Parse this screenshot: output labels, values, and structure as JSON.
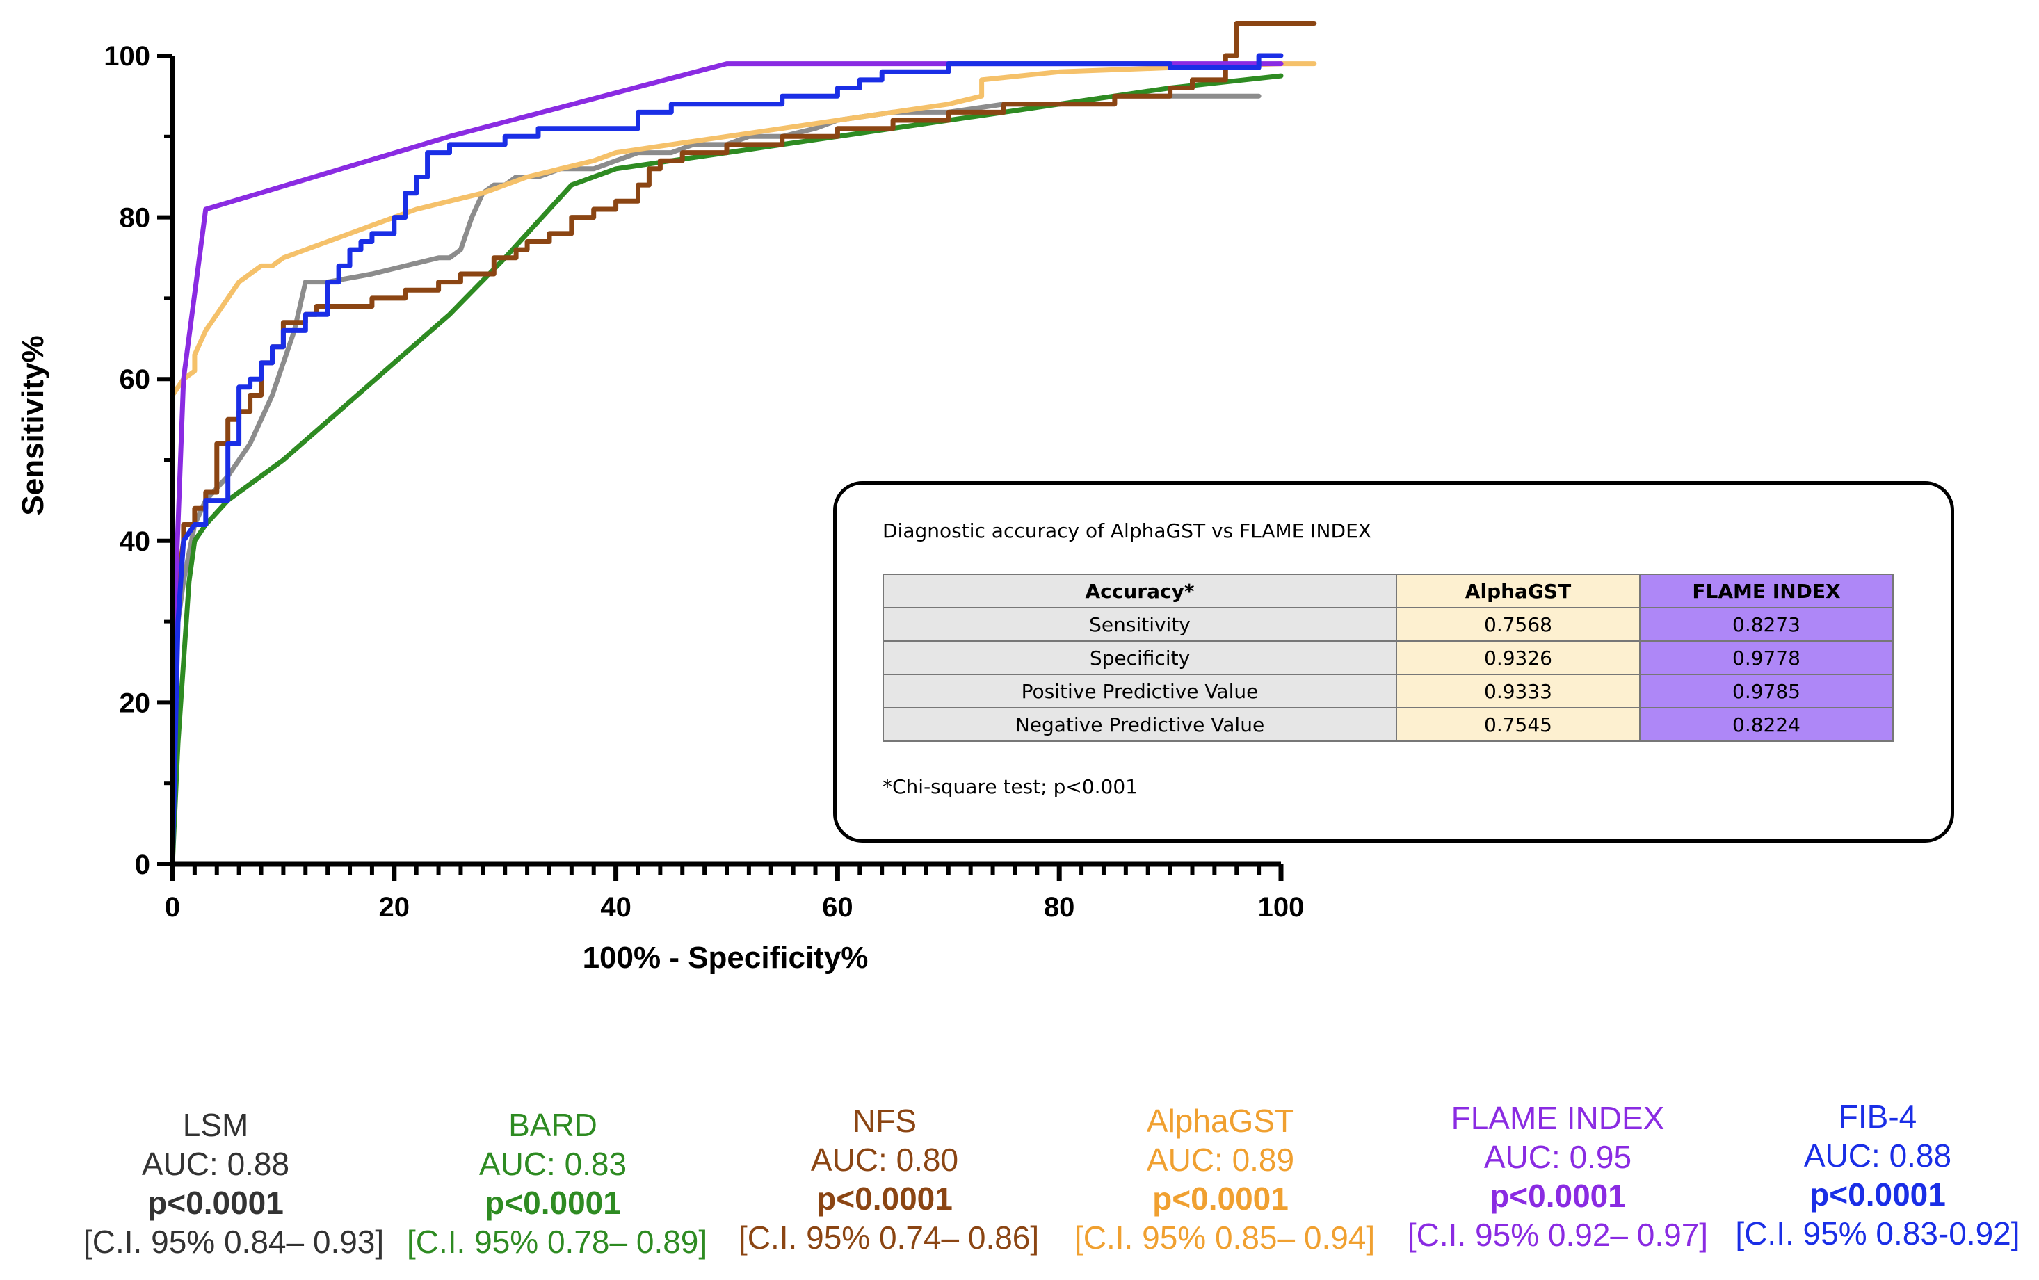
{
  "chart_data": {
    "type": "line",
    "title": "",
    "xlabel": "100% - Specificity%",
    "ylabel": "Sensitivity%",
    "xlim": [
      0,
      100
    ],
    "ylim": [
      0,
      100
    ],
    "x_ticks": [
      "0",
      "20",
      "40",
      "60",
      "80",
      "100"
    ],
    "y_ticks": [
      "0",
      "20",
      "40",
      "60",
      "80",
      "100"
    ],
    "grid": false,
    "series": [
      {
        "name": "LSM",
        "color": "#8c8c8c",
        "x": [
          0,
          0,
          0.5,
          1,
          2,
          3,
          5,
          7,
          9,
          10,
          11,
          12,
          14,
          18,
          21,
          24,
          25,
          26,
          27,
          28,
          29,
          30,
          31,
          33,
          35,
          38,
          40,
          42,
          45,
          47,
          50,
          52,
          55,
          58,
          60,
          65,
          70,
          75,
          80,
          85,
          90,
          95,
          98
        ],
        "y": [
          0,
          25,
          30,
          35,
          42,
          45,
          48,
          52,
          58,
          62,
          66,
          72,
          72,
          73,
          74,
          75,
          75,
          76,
          80,
          83,
          84,
          84,
          85,
          85,
          86,
          86,
          87,
          88,
          88,
          89,
          89,
          90,
          90,
          91,
          92,
          93,
          93,
          94,
          94,
          95,
          95,
          95,
          95
        ]
      },
      {
        "name": "BARD",
        "color": "#2e8b22",
        "x": [
          0,
          0.5,
          1,
          1.5,
          2,
          3,
          5,
          10,
          15,
          20,
          25,
          30,
          36,
          40,
          45,
          50,
          55,
          60,
          70,
          80,
          90,
          100
        ],
        "y": [
          0,
          15,
          25,
          35,
          40,
          42,
          45,
          50,
          56,
          62,
          68,
          75,
          84,
          86,
          87,
          88,
          89,
          90,
          92,
          94,
          96,
          97.5
        ]
      },
      {
        "name": "NFS",
        "color": "#8b4513",
        "x": [
          0,
          0.5,
          1,
          1,
          2,
          2,
          3,
          3,
          4,
          4,
          5,
          5,
          6,
          6,
          7,
          7,
          8,
          8,
          9,
          9,
          10,
          10,
          12,
          12,
          13,
          13,
          15,
          15,
          18,
          18,
          21,
          21,
          24,
          24,
          26,
          26,
          29,
          29,
          31,
          31,
          32,
          32,
          34,
          34,
          36,
          36,
          38,
          38,
          40,
          40,
          42,
          42,
          43,
          43,
          44,
          44,
          46,
          46,
          50,
          50,
          55,
          55,
          60,
          60,
          65,
          65,
          70,
          70,
          75,
          75,
          80,
          80,
          85,
          85,
          90,
          90,
          92,
          92,
          95,
          95,
          96,
          96,
          103
        ],
        "y": [
          0,
          35,
          40,
          42,
          42,
          44,
          44,
          46,
          46,
          52,
          52,
          55,
          55,
          56,
          56,
          58,
          58,
          62,
          62,
          64,
          64,
          67,
          67,
          68,
          68,
          69,
          69,
          69,
          69,
          70,
          70,
          71,
          71,
          72,
          72,
          73,
          73,
          75,
          75,
          76,
          76,
          77,
          77,
          78,
          78,
          80,
          80,
          81,
          81,
          82,
          82,
          84,
          84,
          86,
          86,
          87,
          87,
          88,
          88,
          89,
          89,
          90,
          90,
          91,
          91,
          92,
          92,
          93,
          93,
          94,
          94,
          94,
          94,
          95,
          95,
          96,
          96,
          97,
          97,
          100,
          100,
          104,
          104
        ]
      },
      {
        "name": "AlphaGST",
        "color": "#f5c16a",
        "x": [
          0,
          0,
          1,
          2,
          2,
          3,
          4,
          5,
          6,
          7,
          8,
          9,
          10,
          12,
          14,
          16,
          18,
          20,
          22,
          25,
          28,
          30,
          32,
          35,
          38,
          40,
          45,
          50,
          55,
          60,
          65,
          70,
          73,
          73,
          80,
          90,
          100,
          103
        ],
        "y": [
          0,
          58,
          60,
          61,
          63,
          66,
          68,
          70,
          72,
          73,
          74,
          74,
          75,
          76,
          77,
          78,
          79,
          80,
          81,
          82,
          83,
          84,
          85,
          86,
          87,
          88,
          89,
          90,
          91,
          92,
          93,
          94,
          95,
          97,
          98,
          98.5,
          99,
          99
        ]
      },
      {
        "name": "FLAME INDEX",
        "color": "#8a2be2",
        "x": [
          0,
          0.3,
          0.5,
          1,
          3,
          25,
          50,
          60,
          100
        ],
        "y": [
          0,
          35,
          42,
          60,
          81,
          90,
          99,
          99,
          99
        ]
      },
      {
        "name": "FIB-4",
        "color": "#1a2ee6",
        "x": [
          0,
          0.5,
          1,
          2,
          3,
          3,
          5,
          5,
          6,
          6,
          7,
          7,
          8,
          8,
          9,
          9,
          10,
          10,
          12,
          12,
          14,
          14,
          15,
          15,
          16,
          16,
          17,
          17,
          18,
          18,
          20,
          20,
          21,
          21,
          22,
          22,
          23,
          23,
          25,
          25,
          28,
          28,
          30,
          30,
          33,
          33,
          37,
          37,
          40,
          40,
          42,
          42,
          45,
          45,
          47,
          47,
          50,
          50,
          55,
          55,
          58,
          58,
          60,
          60,
          62,
          62,
          64,
          64,
          70,
          70,
          72,
          72,
          90,
          90,
          98,
          98,
          100
        ],
        "y": [
          0,
          30,
          40,
          42,
          42,
          45,
          45,
          52,
          52,
          59,
          59,
          60,
          60,
          62,
          62,
          64,
          64,
          66,
          66,
          68,
          68,
          72,
          72,
          74,
          74,
          76,
          76,
          77,
          77,
          78,
          78,
          80,
          80,
          83,
          83,
          85,
          85,
          88,
          88,
          89,
          89,
          89,
          89,
          90,
          90,
          91,
          91,
          91,
          91,
          91,
          91,
          93,
          93,
          94,
          94,
          94,
          94,
          94,
          94,
          95,
          95,
          95,
          95,
          96,
          96,
          97,
          97,
          98,
          98,
          99,
          99,
          99,
          99,
          98.5,
          98.5,
          100,
          100
        ]
      }
    ]
  },
  "inset": {
    "title": "Diagnostic accuracy of AlphaGST vs FLAME INDEX",
    "headers": [
      "Accuracy*",
      "AlphaGST",
      "FLAME INDEX"
    ],
    "rows": [
      [
        "Sensitivity",
        "0.7568",
        "0.8273"
      ],
      [
        "Specificity",
        "0.9326",
        "0.9778"
      ],
      [
        "Positive Predictive Value",
        "0.9333",
        "0.9785"
      ],
      [
        "Negative Predictive Value",
        "0.7545",
        "0.8224"
      ]
    ],
    "note": "*Chi-square test; p<0.001"
  },
  "legend": [
    {
      "name": "LSM",
      "auc": "AUC: 0.88",
      "p": "p<0.0001",
      "ci": "[C.I. 95% 0.84– 0.93]",
      "color": "#333333"
    },
    {
      "name": "BARD",
      "auc": "AUC: 0.83",
      "p": "p<0.0001",
      "ci": "[C.I. 95% 0.78– 0.89]",
      "color": "#2e8b22"
    },
    {
      "name": "NFS",
      "auc": "AUC: 0.80",
      "p": "p<0.0001",
      "ci": "[C.I. 95% 0.74– 0.86]",
      "color": "#8b4513"
    },
    {
      "name": "AlphaGST",
      "auc": "AUC: 0.89",
      "p": "p<0.0001",
      "ci": "[C.I. 95% 0.85– 0.94]",
      "color": "#f0a030"
    },
    {
      "name": "FLAME INDEX",
      "auc": "AUC: 0.95",
      "p": "p<0.0001",
      "ci": "[C.I. 95% 0.92– 0.97]",
      "color": "#8a2be2"
    },
    {
      "name": "FIB-4",
      "auc": "AUC: 0.88",
      "p": "p<0.0001",
      "ci": "[C.I. 95% 0.83-0.92]",
      "color": "#1a2ee6"
    }
  ]
}
